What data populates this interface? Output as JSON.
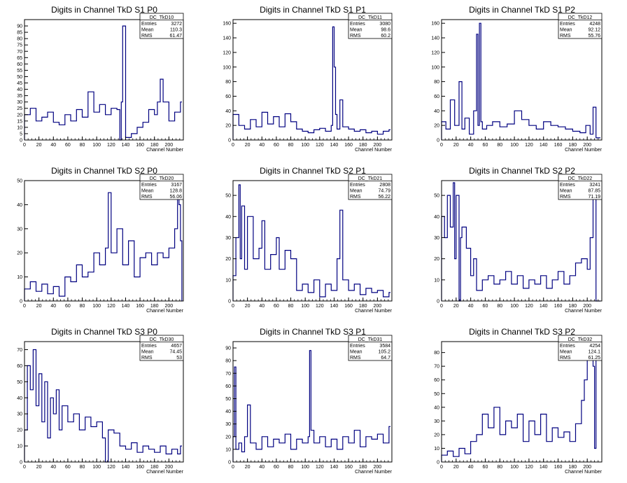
{
  "colors": {
    "histogram": "#000080",
    "frame": "#000000",
    "background": "#ffffff"
  },
  "chart_data": [
    {
      "type": "line",
      "title": "Digits in Channel TkD S1 P0",
      "xlabel": "Channel Number",
      "ylabel": "",
      "xlim": [
        0,
        220
      ],
      "ylim": [
        0,
        95
      ],
      "xticks": [
        0,
        20,
        40,
        60,
        80,
        100,
        120,
        140,
        160,
        180,
        200
      ],
      "yticks": [
        0,
        5,
        10,
        15,
        20,
        25,
        30,
        35,
        40,
        45,
        50,
        55,
        60,
        65,
        70,
        75,
        80,
        85,
        90
      ],
      "stats": {
        "name": "DC_TkD10",
        "rows": [
          [
            "Entries",
            "3272"
          ],
          [
            "Mean",
            "110.3"
          ],
          [
            "RMS",
            "61.47"
          ]
        ]
      },
      "series": [
        {
          "x": [
            0,
            8,
            16,
            24,
            32,
            40,
            48,
            56,
            64,
            72,
            80,
            88,
            96,
            104,
            112,
            120,
            128,
            132,
            134,
            136,
            140,
            148,
            156,
            164,
            172,
            180,
            184,
            188,
            192,
            200,
            208,
            216
          ],
          "values": [
            20,
            25,
            15,
            18,
            22,
            14,
            12,
            20,
            15,
            24,
            18,
            38,
            22,
            28,
            20,
            25,
            24,
            0,
            30,
            90,
            2,
            5,
            10,
            14,
            24,
            20,
            30,
            48,
            30,
            15,
            22,
            30
          ]
        }
      ]
    },
    {
      "type": "line",
      "title": "Digits in Channel TkD S1 P1",
      "xlabel": "Channel Number",
      "ylabel": "",
      "xlim": [
        0,
        220
      ],
      "ylim": [
        0,
        165
      ],
      "xticks": [
        0,
        20,
        40,
        60,
        80,
        100,
        120,
        140,
        160,
        180,
        200
      ],
      "yticks": [
        0,
        20,
        40,
        60,
        80,
        100,
        120,
        140,
        160
      ],
      "stats": {
        "name": "DC_TkD11",
        "rows": [
          [
            "Entries",
            "3080"
          ],
          [
            "Mean",
            "98.6"
          ],
          [
            "RMS",
            "60.2"
          ]
        ]
      },
      "series": [
        {
          "x": [
            0,
            8,
            16,
            24,
            32,
            40,
            48,
            56,
            64,
            72,
            80,
            88,
            96,
            104,
            112,
            120,
            128,
            136,
            138,
            140,
            142,
            144,
            148,
            152,
            160,
            168,
            176,
            184,
            192,
            200,
            208,
            216
          ],
          "values": [
            35,
            20,
            15,
            28,
            18,
            38,
            22,
            32,
            18,
            36,
            25,
            15,
            12,
            10,
            14,
            16,
            12,
            20,
            155,
            100,
            35,
            15,
            55,
            18,
            15,
            12,
            14,
            10,
            12,
            8,
            12,
            14
          ]
        }
      ]
    },
    {
      "type": "line",
      "title": "Digits in Channel TkD S1 P2",
      "xlabel": "Channel Number",
      "ylabel": "",
      "xlim": [
        0,
        220
      ],
      "ylim": [
        0,
        165
      ],
      "xticks": [
        0,
        20,
        40,
        60,
        80,
        100,
        120,
        140,
        160,
        180,
        200
      ],
      "yticks": [
        0,
        20,
        40,
        60,
        80,
        100,
        120,
        140,
        160
      ],
      "stats": {
        "name": "DC_TkD12",
        "rows": [
          [
            "Entries",
            "4248"
          ],
          [
            "Mean",
            "92.12"
          ],
          [
            "RMS",
            "55.76"
          ]
        ]
      },
      "series": [
        {
          "x": [
            0,
            6,
            12,
            18,
            24,
            28,
            32,
            38,
            44,
            48,
            50,
            52,
            54,
            56,
            62,
            70,
            80,
            90,
            100,
            110,
            120,
            130,
            140,
            150,
            160,
            170,
            180,
            190,
            198,
            204,
            208,
            212
          ],
          "values": [
            25,
            15,
            55,
            20,
            80,
            15,
            30,
            8,
            40,
            145,
            20,
            160,
            25,
            15,
            20,
            25,
            18,
            22,
            40,
            28,
            20,
            15,
            25,
            20,
            18,
            15,
            12,
            10,
            20,
            8,
            45,
            3
          ]
        }
      ]
    },
    {
      "type": "line",
      "title": "Digits in Channel TkD S2 P0",
      "xlabel": "Channel Number",
      "ylabel": "",
      "xlim": [
        0,
        220
      ],
      "ylim": [
        0,
        50
      ],
      "xticks": [
        0,
        20,
        40,
        60,
        80,
        100,
        120,
        140,
        160,
        180,
        200
      ],
      "yticks": [
        0,
        10,
        20,
        30,
        40,
        50
      ],
      "stats": {
        "name": "DC_TkD20",
        "rows": [
          [
            "Entries",
            "3167"
          ],
          [
            "Mean",
            "128.8"
          ],
          [
            "RMS",
            "56.06"
          ]
        ]
      },
      "series": [
        {
          "x": [
            0,
            8,
            16,
            24,
            32,
            40,
            48,
            56,
            64,
            72,
            80,
            88,
            96,
            104,
            112,
            116,
            120,
            128,
            136,
            144,
            152,
            160,
            168,
            176,
            184,
            192,
            200,
            208,
            212,
            214,
            216,
            218
          ],
          "values": [
            5,
            8,
            4,
            7,
            3,
            6,
            2,
            10,
            8,
            15,
            10,
            12,
            20,
            15,
            22,
            45,
            20,
            30,
            15,
            25,
            10,
            18,
            20,
            15,
            20,
            18,
            22,
            30,
            48,
            40,
            25,
            0
          ]
        }
      ]
    },
    {
      "type": "line",
      "title": "Digits in Channel TkD S2 P1",
      "xlabel": "Channel Number",
      "ylabel": "",
      "xlim": [
        0,
        220
      ],
      "ylim": [
        0,
        57
      ],
      "xticks": [
        0,
        20,
        40,
        60,
        80,
        100,
        120,
        140,
        160,
        180,
        200
      ],
      "yticks": [
        0,
        10,
        20,
        30,
        40,
        50
      ],
      "stats": {
        "name": "DC_TkD21",
        "rows": [
          [
            "Entries",
            "2808"
          ],
          [
            "Mean",
            "74.79"
          ],
          [
            "RMS",
            "56.22"
          ]
        ]
      },
      "series": [
        {
          "x": [
            0,
            4,
            8,
            10,
            12,
            16,
            20,
            28,
            36,
            40,
            44,
            52,
            60,
            64,
            72,
            80,
            88,
            96,
            104,
            112,
            120,
            128,
            136,
            144,
            148,
            152,
            160,
            168,
            176,
            184,
            192,
            200,
            208,
            216
          ],
          "values": [
            12,
            30,
            55,
            20,
            45,
            15,
            40,
            20,
            25,
            38,
            15,
            22,
            30,
            15,
            24,
            20,
            5,
            8,
            4,
            10,
            2,
            8,
            5,
            20,
            43,
            10,
            5,
            8,
            3,
            6,
            4,
            5,
            2,
            4
          ]
        }
      ]
    },
    {
      "type": "line",
      "title": "Digits in Channel TkD S2 P2",
      "xlabel": "Channel Number",
      "ylabel": "",
      "xlim": [
        0,
        220
      ],
      "ylim": [
        0,
        57
      ],
      "xticks": [
        0,
        20,
        40,
        60,
        80,
        100,
        120,
        140,
        160,
        180,
        200
      ],
      "yticks": [
        0,
        10,
        20,
        30,
        40,
        50
      ],
      "stats": {
        "name": "DC_TkD22",
        "rows": [
          [
            "Entries",
            "3241"
          ],
          [
            "Mean",
            "87.85"
          ],
          [
            "RMS",
            "71.19"
          ]
        ]
      },
      "series": [
        {
          "x": [
            0,
            4,
            8,
            12,
            16,
            18,
            20,
            24,
            26,
            28,
            34,
            40,
            44,
            48,
            56,
            64,
            72,
            80,
            88,
            96,
            104,
            112,
            120,
            128,
            136,
            144,
            152,
            160,
            168,
            176,
            184,
            192,
            200,
            204,
            208,
            212
          ],
          "values": [
            40,
            30,
            50,
            35,
            56,
            20,
            50,
            0,
            30,
            35,
            25,
            12,
            20,
            5,
            10,
            12,
            8,
            10,
            14,
            8,
            12,
            6,
            10,
            8,
            12,
            6,
            10,
            14,
            8,
            12,
            18,
            20,
            15,
            30,
            56,
            0
          ]
        }
      ]
    },
    {
      "type": "line",
      "title": "Digits in Channel TkD S3 P0",
      "xlabel": "Channel Number",
      "ylabel": "",
      "xlim": [
        0,
        220
      ],
      "ylim": [
        0,
        75
      ],
      "xticks": [
        0,
        20,
        40,
        60,
        80,
        100,
        120,
        140,
        160,
        180,
        200
      ],
      "yticks": [
        0,
        10,
        20,
        30,
        40,
        50,
        60,
        70
      ],
      "stats": {
        "name": "DC_TkD30",
        "rows": [
          [
            "Entries",
            "4657"
          ],
          [
            "Mean",
            "74.45"
          ],
          [
            "RMS",
            "53"
          ]
        ]
      },
      "series": [
        {
          "x": [
            0,
            4,
            8,
            12,
            16,
            20,
            24,
            28,
            32,
            36,
            40,
            44,
            48,
            52,
            60,
            68,
            76,
            84,
            92,
            100,
            108,
            112,
            116,
            124,
            132,
            140,
            148,
            156,
            164,
            172,
            180,
            188,
            196,
            204,
            212,
            216
          ],
          "values": [
            20,
            60,
            45,
            70,
            35,
            55,
            25,
            50,
            15,
            40,
            30,
            45,
            20,
            35,
            25,
            30,
            20,
            28,
            22,
            25,
            15,
            0,
            20,
            18,
            10,
            8,
            12,
            6,
            10,
            8,
            6,
            10,
            5,
            8,
            5,
            10
          ]
        }
      ]
    },
    {
      "type": "line",
      "title": "Digits in Channel TkD S3 P1",
      "xlabel": "Channel Number",
      "ylabel": "",
      "xlim": [
        0,
        220
      ],
      "ylim": [
        0,
        95
      ],
      "xticks": [
        0,
        20,
        40,
        60,
        80,
        100,
        120,
        140,
        160,
        180,
        200
      ],
      "yticks": [
        0,
        10,
        20,
        30,
        40,
        50,
        60,
        70,
        80,
        90
      ],
      "stats": {
        "name": "DC_TkD31",
        "rows": [
          [
            "Entries",
            "3584"
          ],
          [
            "Mean",
            "105.2"
          ],
          [
            "RMS",
            "64.7"
          ]
        ]
      },
      "series": [
        {
          "x": [
            0,
            2,
            4,
            8,
            12,
            16,
            20,
            24,
            32,
            40,
            48,
            56,
            64,
            72,
            80,
            88,
            96,
            104,
            106,
            108,
            112,
            120,
            128,
            136,
            144,
            152,
            160,
            168,
            176,
            184,
            192,
            200,
            208,
            216
          ],
          "values": [
            20,
            75,
            10,
            15,
            8,
            20,
            45,
            15,
            10,
            20,
            12,
            18,
            15,
            22,
            10,
            18,
            15,
            20,
            88,
            25,
            15,
            20,
            12,
            18,
            10,
            20,
            15,
            25,
            12,
            20,
            18,
            22,
            15,
            28
          ]
        }
      ]
    },
    {
      "type": "line",
      "title": "Digits in Channel TkD S3 P2",
      "xlabel": "Channel Number",
      "ylabel": "",
      "xlim": [
        0,
        220
      ],
      "ylim": [
        0,
        88
      ],
      "xticks": [
        0,
        20,
        40,
        60,
        80,
        100,
        120,
        140,
        160,
        180,
        200
      ],
      "yticks": [
        0,
        10,
        20,
        30,
        40,
        50,
        60,
        70,
        80
      ],
      "stats": {
        "name": "DC_TkD32",
        "rows": [
          [
            "Entries",
            "4254"
          ],
          [
            "Mean",
            "124.1"
          ],
          [
            "RMS",
            "61.25"
          ]
        ]
      },
      "series": [
        {
          "x": [
            0,
            8,
            16,
            24,
            32,
            40,
            48,
            56,
            64,
            72,
            80,
            88,
            96,
            104,
            112,
            120,
            128,
            136,
            144,
            152,
            160,
            168,
            176,
            184,
            192,
            196,
            200,
            204,
            208,
            210,
            212
          ],
          "values": [
            5,
            8,
            4,
            10,
            6,
            15,
            20,
            35,
            25,
            40,
            20,
            30,
            25,
            35,
            15,
            30,
            20,
            35,
            15,
            25,
            18,
            22,
            15,
            28,
            45,
            60,
            75,
            85,
            70,
            10,
            85
          ]
        }
      ]
    }
  ]
}
